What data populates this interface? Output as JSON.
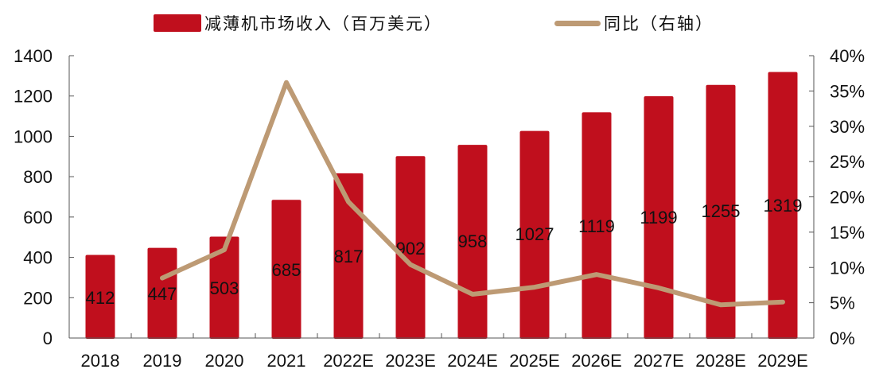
{
  "legend": {
    "bar_label": "减薄机市场收入（百万美元）",
    "line_label": "同比（右轴）"
  },
  "colors": {
    "bar": "#c00f1d",
    "line": "#bd9a74",
    "axis": "#555555",
    "text": "#111111"
  },
  "chart_data": {
    "type": "bar+line",
    "title": "",
    "categories": [
      "2018",
      "2019",
      "2020",
      "2021",
      "2022E",
      "2023E",
      "2024E",
      "2025E",
      "2026E",
      "2027E",
      "2028E",
      "2029E"
    ],
    "series": [
      {
        "name": "减薄机市场收入（百万美元）",
        "type": "bar",
        "axis": "left",
        "values": [
          412,
          447,
          503,
          685,
          817,
          902,
          958,
          1027,
          1119,
          1199,
          1255,
          1319
        ],
        "data_labels": [
          "412",
          "447",
          "503",
          "685",
          "817",
          "902",
          "958",
          "1027",
          "1119",
          "1199",
          "1255",
          "1319"
        ]
      },
      {
        "name": "同比（右轴）",
        "type": "line",
        "axis": "right",
        "values": [
          null,
          8.5,
          12.5,
          36.2,
          19.3,
          10.4,
          6.2,
          7.2,
          9.0,
          7.1,
          4.7,
          5.1
        ]
      }
    ],
    "left_axis": {
      "ylim": [
        0,
        1400
      ],
      "ticks": [
        "0",
        "200",
        "400",
        "600",
        "800",
        "1000",
        "1200",
        "1400"
      ]
    },
    "right_axis": {
      "ylim": [
        0,
        40
      ],
      "ticks": [
        "0%",
        "5%",
        "10%",
        "15%",
        "20%",
        "25%",
        "30%",
        "35%",
        "40%"
      ]
    },
    "xlabel": "",
    "ylabel": "",
    "grid": false,
    "legend_position": "top"
  }
}
